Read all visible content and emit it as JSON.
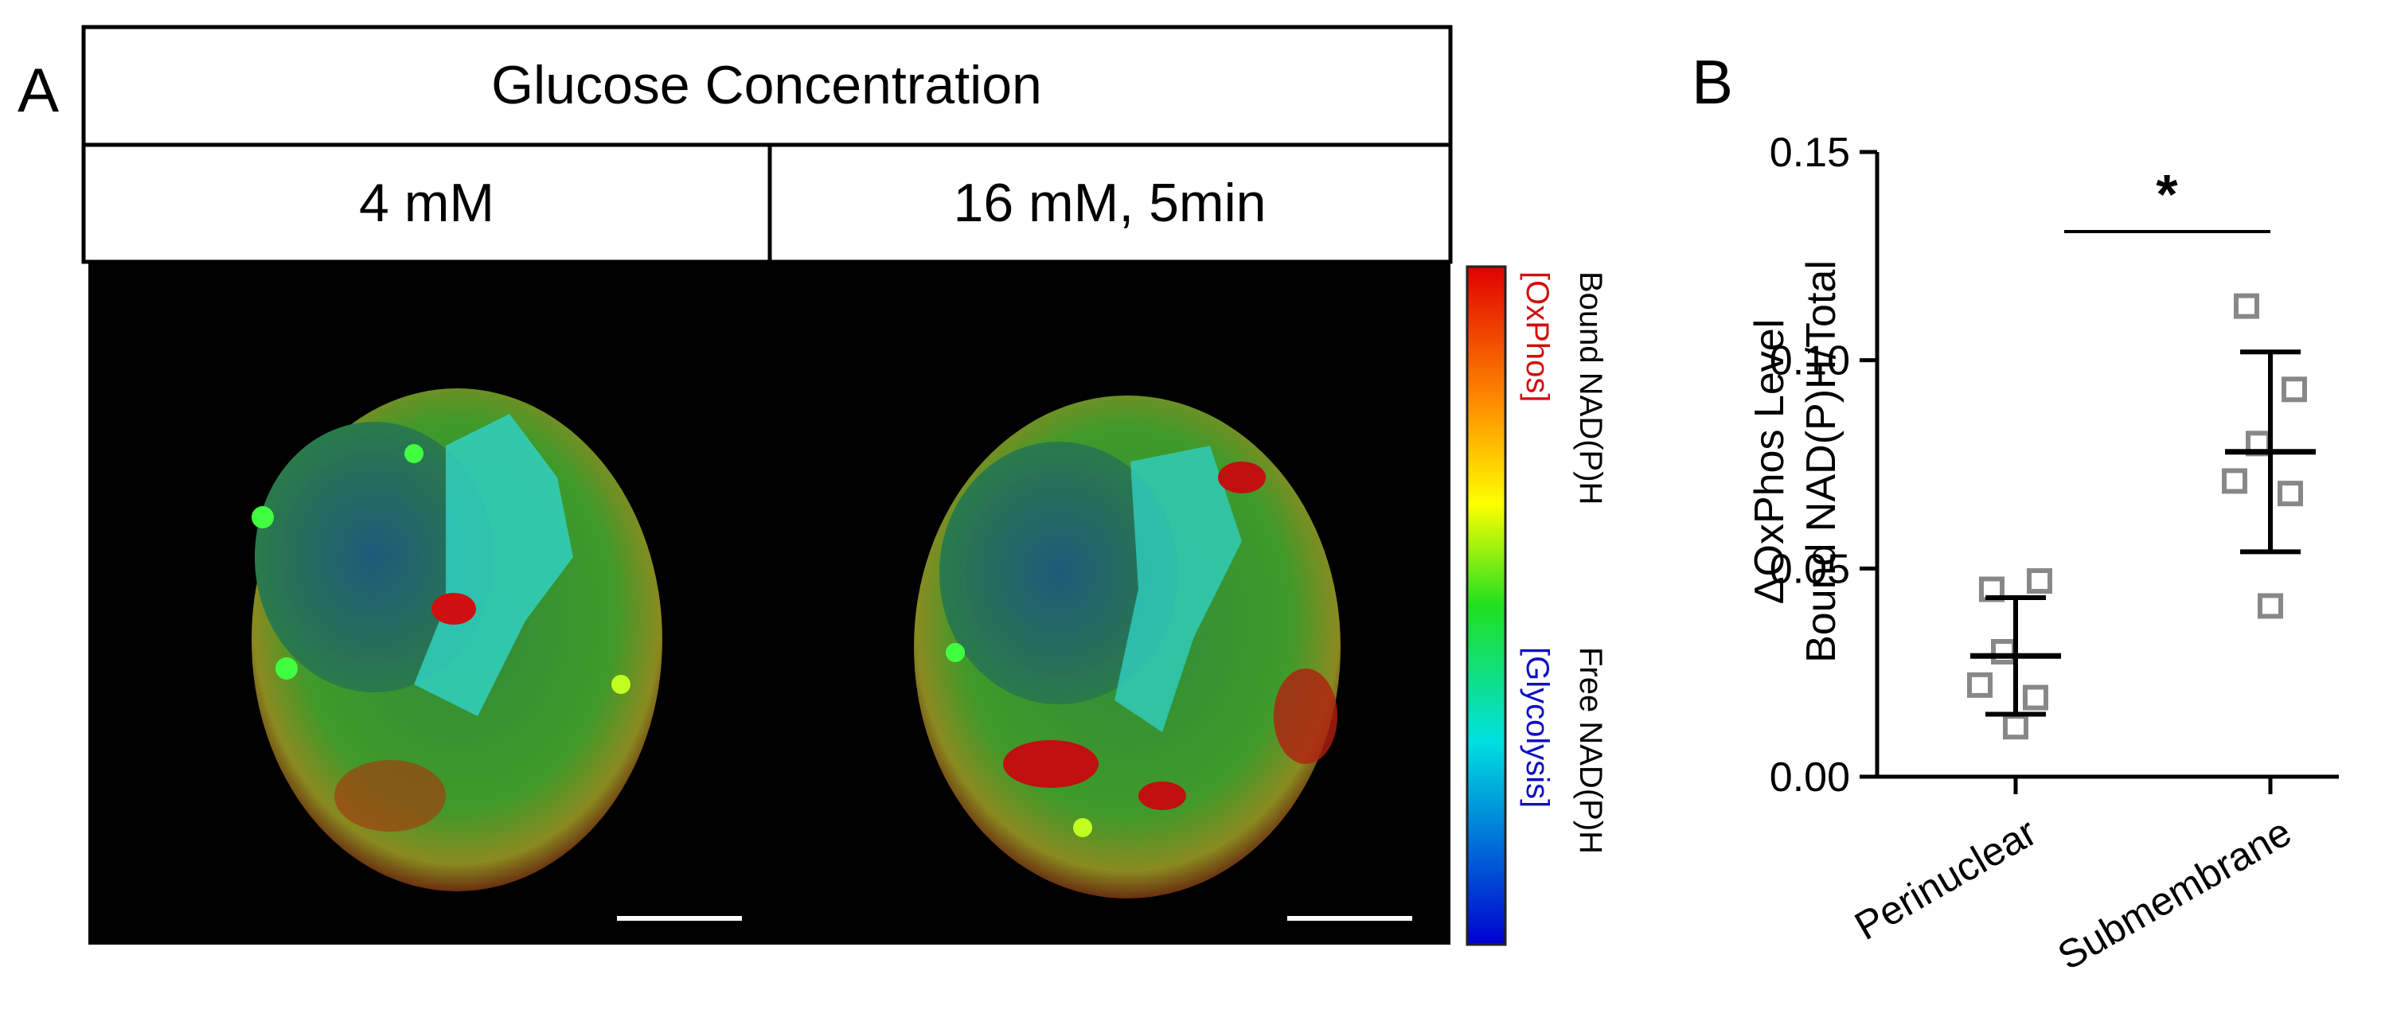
{
  "panel_a": {
    "label": "A",
    "header": "Glucose Concentration",
    "columns": [
      "4 mM",
      "16 mM, 5min"
    ],
    "colorbar": {
      "top": "Bound NAD(P)H",
      "top_note": "[OxPhos]",
      "bottom": "Free NAD(P)H",
      "bottom_note": "[Glycolysis]"
    }
  },
  "chart_data": {
    "type": "dot",
    "label": "B",
    "ylabel": [
      "ΔOxPhos Level",
      "Bound NAD(P)H/Total"
    ],
    "categories": [
      "Perinuclear",
      "Submembrane"
    ],
    "points": [
      [
        0.045,
        0.047,
        0.03,
        0.022,
        0.019,
        0.012
      ],
      [
        0.113,
        0.093,
        0.08,
        0.071,
        0.068,
        0.041
      ]
    ],
    "means": [
      0.029,
      0.078
    ],
    "errors": [
      0.014,
      0.024
    ],
    "color": "#888888",
    "annotation": "*",
    "ylim": [
      0,
      0.15
    ],
    "yticks": [
      {
        "value": 0,
        "label": "0.00"
      },
      {
        "value": 0.05,
        "label": "0.05"
      },
      {
        "value": 0.1,
        "label": "0.10"
      },
      {
        "value": 0.15,
        "label": "0.15"
      }
    ]
  }
}
